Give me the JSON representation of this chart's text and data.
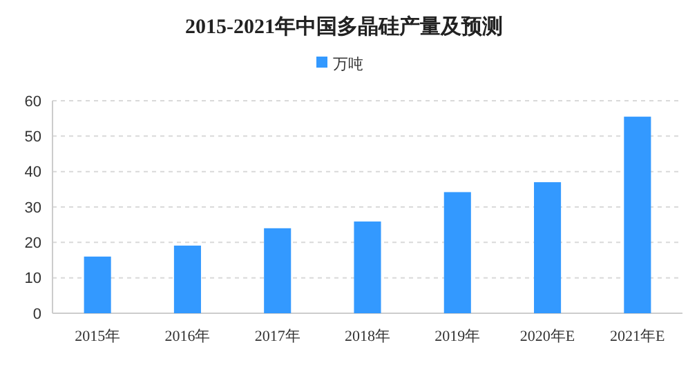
{
  "chart_data": {
    "type": "bar",
    "title": "2015-2021年中国多晶硅产量及预测",
    "categories": [
      "2015年",
      "2016年",
      "2017年",
      "2018年",
      "2019年",
      "2020年E",
      "2021年E"
    ],
    "series": [
      {
        "name": "万吨",
        "color": "#3399ff",
        "values": [
          16,
          19.1,
          24,
          25.9,
          34.2,
          37,
          55.5
        ]
      }
    ],
    "ylim": [
      0,
      60
    ],
    "yticks": [
      0,
      10,
      20,
      30,
      40,
      50,
      60
    ],
    "grid": "y",
    "legend": "top"
  }
}
